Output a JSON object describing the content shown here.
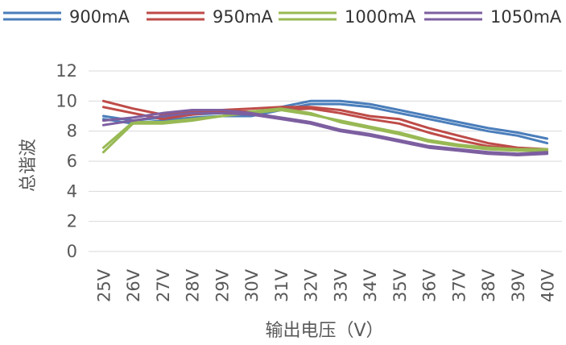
{
  "chart_data": {
    "type": "line",
    "title": "",
    "xlabel": "输出电压（V）",
    "ylabel": "总谐波",
    "ylim": [
      0,
      12
    ],
    "yticks": [
      0,
      2,
      4,
      6,
      8,
      10,
      12
    ],
    "grid": true,
    "legend_position": "top",
    "categories": [
      "25V",
      "26V",
      "27V",
      "28V",
      "29V",
      "30V",
      "31V",
      "32V",
      "33V",
      "34V",
      "35V",
      "36V",
      "37V",
      "38V",
      "39V",
      "40V"
    ],
    "series": [
      {
        "name": "900mA",
        "color": "#4a7ebb",
        "values": [
          9.0,
          8.7,
          8.9,
          9.1,
          9.2,
          9.2,
          9.6,
          10.0,
          10.0,
          9.8,
          9.4,
          9.0,
          8.6,
          8.2,
          7.9,
          7.5
        ]
      },
      {
        "name": "900mA",
        "color": "#4a7ebb",
        "values": [
          8.8,
          8.5,
          8.7,
          8.9,
          9.0,
          9.0,
          9.4,
          9.8,
          9.8,
          9.6,
          9.2,
          8.8,
          8.4,
          8.0,
          7.7,
          7.2
        ]
      },
      {
        "name": "950mA",
        "color": "#be4b48",
        "values": [
          10.0,
          9.5,
          9.1,
          9.3,
          9.4,
          9.5,
          9.6,
          9.6,
          9.4,
          9.0,
          8.8,
          8.2,
          7.7,
          7.2,
          6.9,
          6.8
        ]
      },
      {
        "name": "950mA",
        "color": "#be4b48",
        "values": [
          9.6,
          9.2,
          8.8,
          9.1,
          9.3,
          9.3,
          9.4,
          9.5,
          9.2,
          8.8,
          8.5,
          7.9,
          7.4,
          7.0,
          6.8,
          6.6
        ]
      },
      {
        "name": "1000mA",
        "color": "#98b954",
        "values": [
          6.9,
          8.6,
          8.6,
          8.8,
          9.0,
          9.2,
          9.4,
          9.1,
          8.7,
          8.3,
          7.9,
          7.4,
          7.1,
          6.9,
          6.8,
          6.8
        ]
      },
      {
        "name": "1000mA",
        "color": "#98b954",
        "values": [
          6.6,
          8.5,
          8.5,
          8.7,
          9.0,
          9.3,
          9.5,
          9.2,
          8.6,
          8.2,
          7.8,
          7.3,
          7.0,
          6.8,
          6.7,
          6.7
        ]
      },
      {
        "name": "1050mA",
        "color": "#7d5fa0",
        "values": [
          8.4,
          8.7,
          9.0,
          9.2,
          9.2,
          9.1,
          8.8,
          8.5,
          8.0,
          7.7,
          7.3,
          6.9,
          6.7,
          6.5,
          6.4,
          6.5
        ]
      },
      {
        "name": "1050mA",
        "color": "#7d5fa0",
        "values": [
          8.7,
          8.9,
          9.2,
          9.4,
          9.4,
          9.2,
          8.9,
          8.6,
          8.1,
          7.8,
          7.4,
          7.0,
          6.8,
          6.6,
          6.5,
          6.6
        ]
      }
    ],
    "legend": [
      {
        "name": "900mA",
        "color": "#4a7ebb"
      },
      {
        "name": "950mA",
        "color": "#be4b48"
      },
      {
        "name": "1000mA",
        "color": "#98b954"
      },
      {
        "name": "1050mA",
        "color": "#7d5fa0"
      }
    ]
  }
}
